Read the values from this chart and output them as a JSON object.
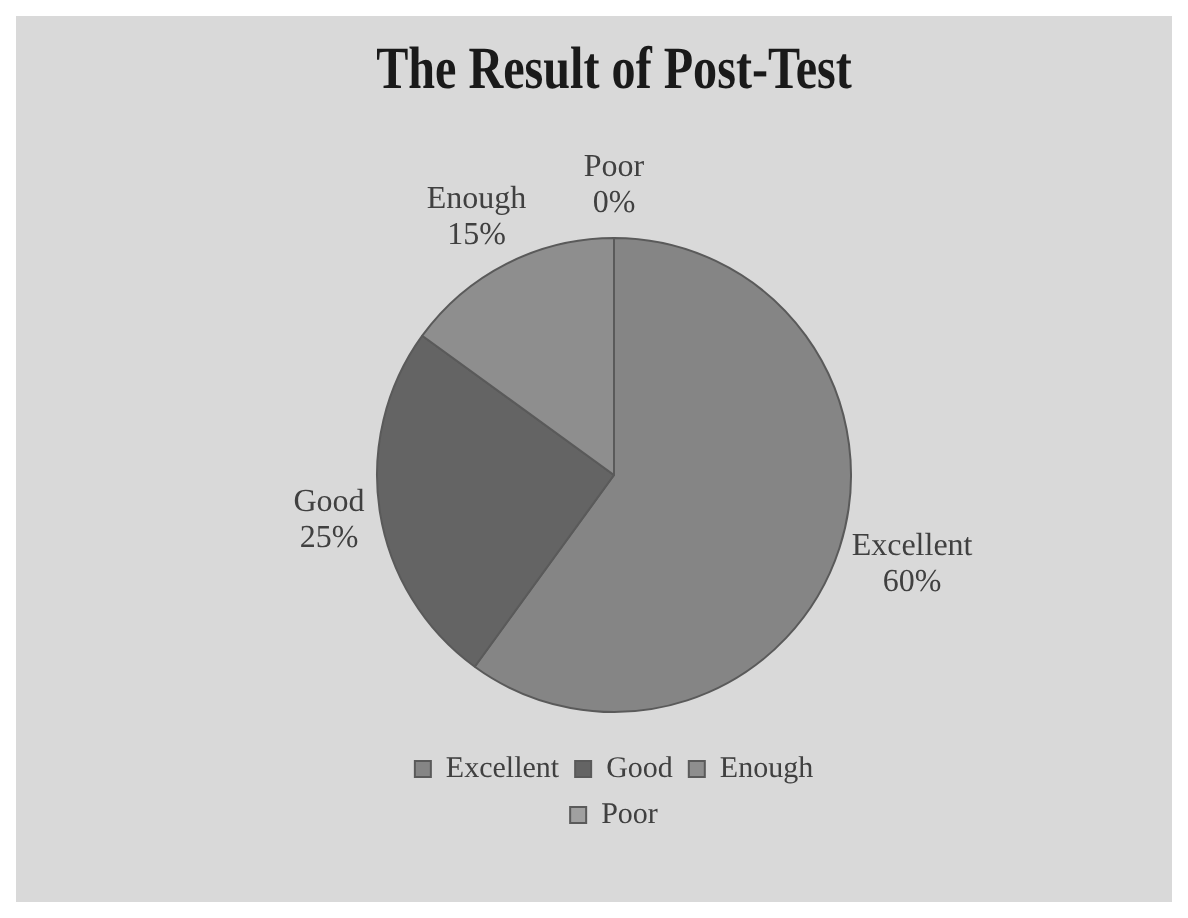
{
  "chart_data": {
    "type": "pie",
    "title": "The Result of Post-Test",
    "categories": [
      "Excellent",
      "Good",
      "Enough",
      "Poor"
    ],
    "values": [
      60,
      25,
      15,
      0
    ],
    "value_labels": [
      "60%",
      "25%",
      "15%",
      "0%"
    ],
    "colors": [
      "#858585",
      "#646464",
      "#8e8e8e",
      "#a0a0a0"
    ],
    "legend": "bottom"
  }
}
